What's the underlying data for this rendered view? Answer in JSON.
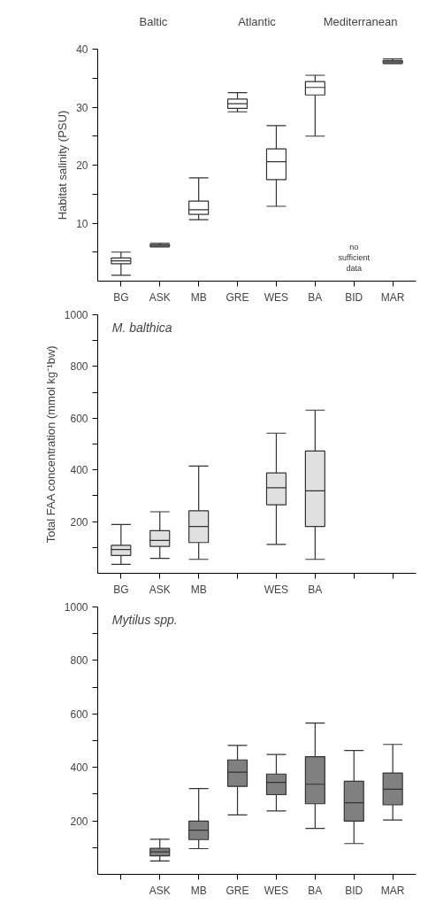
{
  "chart_data": [
    {
      "type": "box",
      "ylabel": "Habitat salinity (PSU)",
      "categories": [
        "BG",
        "ASK",
        "MB",
        "GRE",
        "WES",
        "BA",
        "BID",
        "MAR"
      ],
      "ylim": [
        0,
        40
      ],
      "yticks": [
        {
          "value": 5,
          "label": null
        },
        10,
        {
          "value": 15,
          "label": null
        },
        20,
        {
          "value": 25,
          "label": null
        },
        30,
        {
          "value": 35,
          "label": null
        },
        40
      ],
      "grid": false,
      "annotations": [
        "Baltic",
        "Atlantic",
        "Mediterranean",
        "no sufficient data"
      ],
      "series": [
        {
          "color": "#ffffff",
          "boxes": [
            {
              "low": 1,
              "q1": 3,
              "median": 3.5,
              "q3": 4,
              "high": 5
            },
            {
              "low": 5.9,
              "q1": 6,
              "median": 6.2,
              "q3": 6.3,
              "high": 6.5
            },
            {
              "low": 10.6,
              "q1": 11.5,
              "median": 12.3,
              "q3": 13.8,
              "high": 17.8
            },
            {
              "low": 29.2,
              "q1": 29.8,
              "median": 30.6,
              "q3": 31.4,
              "high": 32.5
            },
            {
              "low": 12.9,
              "q1": 17.5,
              "median": 20.6,
              "q3": 22.8,
              "high": 26.8
            },
            {
              "low": 25,
              "q1": 32.1,
              "median": 33.4,
              "q3": 34.4,
              "high": 35.5
            },
            null,
            {
              "low": 37.5,
              "q1": 37.6,
              "median": 37.8,
              "q3": 38,
              "high": 38.3
            }
          ]
        }
      ]
    },
    {
      "type": "box",
      "title": "M. balthica",
      "ylabel": "Total FAA concentration (mmol kg⁻¹bw)",
      "categories": [
        "BG",
        "ASK",
        "MB",
        null,
        "WES",
        "BA",
        null,
        null
      ],
      "ylim": [
        0,
        1000
      ],
      "yticks": [
        {
          "value": 100,
          "label": null
        },
        200,
        {
          "value": 300,
          "label": null
        },
        400,
        {
          "value": 500,
          "label": null
        },
        600,
        {
          "value": 700,
          "label": null
        },
        800,
        {
          "value": 900,
          "label": null
        },
        1000
      ],
      "grid": false,
      "series": [
        {
          "color": "#e0e0e0",
          "boxes": [
            {
              "low": 35,
              "q1": 69,
              "median": 92,
              "q3": 108,
              "high": 189
            },
            {
              "low": 58,
              "q1": 104,
              "median": 127,
              "q3": 165,
              "high": 238
            },
            {
              "low": 54,
              "q1": 119,
              "median": 181,
              "q3": 242,
              "high": 415
            },
            null,
            {
              "low": 112,
              "q1": 265,
              "median": 331,
              "q3": 388,
              "high": 542
            },
            {
              "low": 54,
              "q1": 181,
              "median": 319,
              "q3": 473,
              "high": 631
            },
            null,
            null
          ]
        }
      ]
    },
    {
      "type": "box",
      "title": "Mytilus spp.",
      "categories": [
        null,
        "ASK",
        "MB",
        "GRE",
        "WES",
        "BA",
        "BID",
        "MAR"
      ],
      "ylim": [
        0,
        1000
      ],
      "yticks": [
        {
          "value": 100,
          "label": null
        },
        200,
        {
          "value": 300,
          "label": null
        },
        400,
        {
          "value": 500,
          "label": null
        },
        600,
        {
          "value": 700,
          "label": null
        },
        800,
        {
          "value": 900,
          "label": null
        },
        1000
      ],
      "grid": false,
      "series": [
        {
          "color": "#808080",
          "boxes": [
            null,
            {
              "low": 50,
              "q1": 69,
              "median": 84,
              "q3": 97,
              "high": 131
            },
            {
              "low": 96,
              "q1": 130,
              "median": 165,
              "q3": 199,
              "high": 321
            },
            {
              "low": 222,
              "q1": 329,
              "median": 382,
              "q3": 428,
              "high": 482
            },
            {
              "low": 237,
              "q1": 298,
              "median": 344,
              "q3": 375,
              "high": 448
            },
            {
              "low": 172,
              "q1": 264,
              "median": 337,
              "q3": 440,
              "high": 566
            },
            {
              "low": 115,
              "q1": 199,
              "median": 268,
              "q3": 348,
              "high": 463
            },
            {
              "low": 203,
              "q1": 260,
              "median": 318,
              "q3": 379,
              "high": 486
            }
          ]
        }
      ]
    }
  ]
}
